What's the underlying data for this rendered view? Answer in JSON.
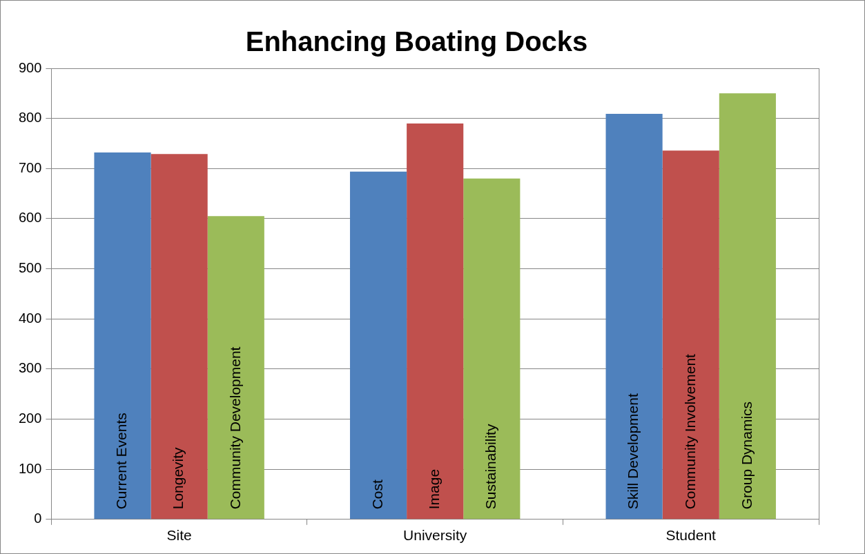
{
  "chart_data": {
    "type": "bar",
    "title": "Enhancing Boating Docks",
    "categories": [
      "Site",
      "University",
      "Student"
    ],
    "series": [
      {
        "color": "#4f81bd",
        "values": [
          732,
          694,
          809
        ],
        "value_labels": [
          "Current Events",
          "Cost",
          "Skill Development"
        ]
      },
      {
        "color": "#c0504d",
        "values": [
          729,
          790,
          736
        ],
        "value_labels": [
          "Longevity",
          "Image",
          "Community Involvement"
        ]
      },
      {
        "color": "#9bbb59",
        "values": [
          605,
          680,
          850
        ],
        "value_labels": [
          "Community Development",
          "Sustainability",
          "Group Dynamics"
        ]
      }
    ],
    "ylim": [
      0,
      900
    ],
    "yticks": [
      0,
      100,
      200,
      300,
      400,
      500,
      600,
      700,
      800,
      900
    ],
    "grid": "y",
    "legend": false
  }
}
